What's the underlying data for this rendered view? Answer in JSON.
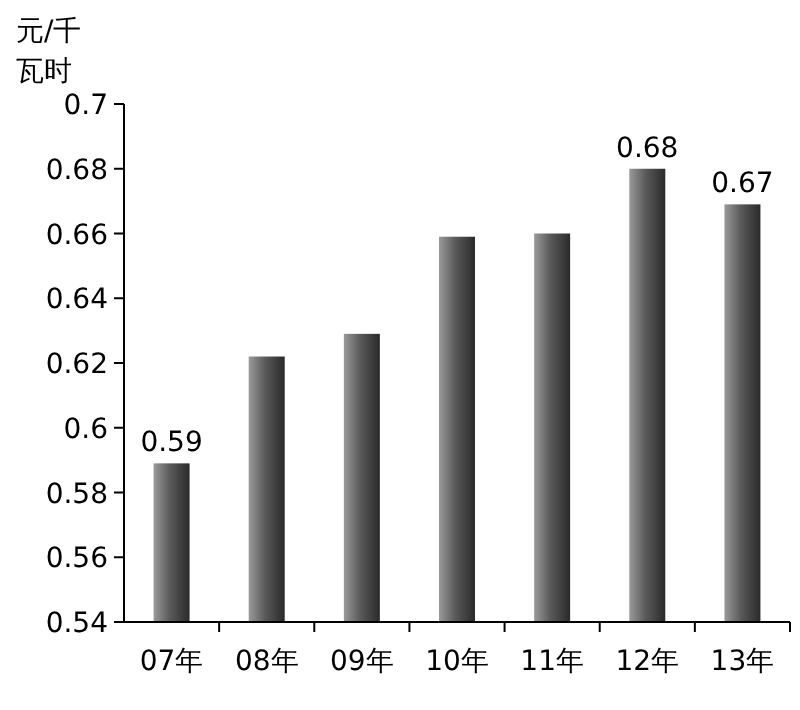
{
  "chart_data": {
    "type": "bar",
    "ylabel": "元/千瓦时",
    "categories": [
      "07年",
      "08年",
      "09年",
      "10年",
      "11年",
      "12年",
      "13年"
    ],
    "series": [
      {
        "color": "#5a5a5a",
        "values": [
          0.589,
          0.622,
          0.629,
          0.659,
          0.66,
          0.68,
          0.669
        ],
        "value_labels": [
          "0.59",
          null,
          null,
          null,
          null,
          "0.68",
          "0.67"
        ]
      }
    ],
    "ylim": [
      0.54,
      0.7
    ],
    "yticks": [
      {
        "value": 0.54,
        "label": "0.54"
      },
      {
        "value": 0.56,
        "label": "0.56"
      },
      {
        "value": 0.58,
        "label": "0.58"
      },
      {
        "value": 0.6,
        "label": "0.6"
      },
      {
        "value": 0.62,
        "label": "0.62"
      },
      {
        "value": 0.64,
        "label": "0.64"
      },
      {
        "value": 0.66,
        "label": "0.66"
      },
      {
        "value": 0.68,
        "label": "0.68"
      },
      {
        "value": 0.7,
        "label": "0.7"
      }
    ],
    "grid": false
  }
}
